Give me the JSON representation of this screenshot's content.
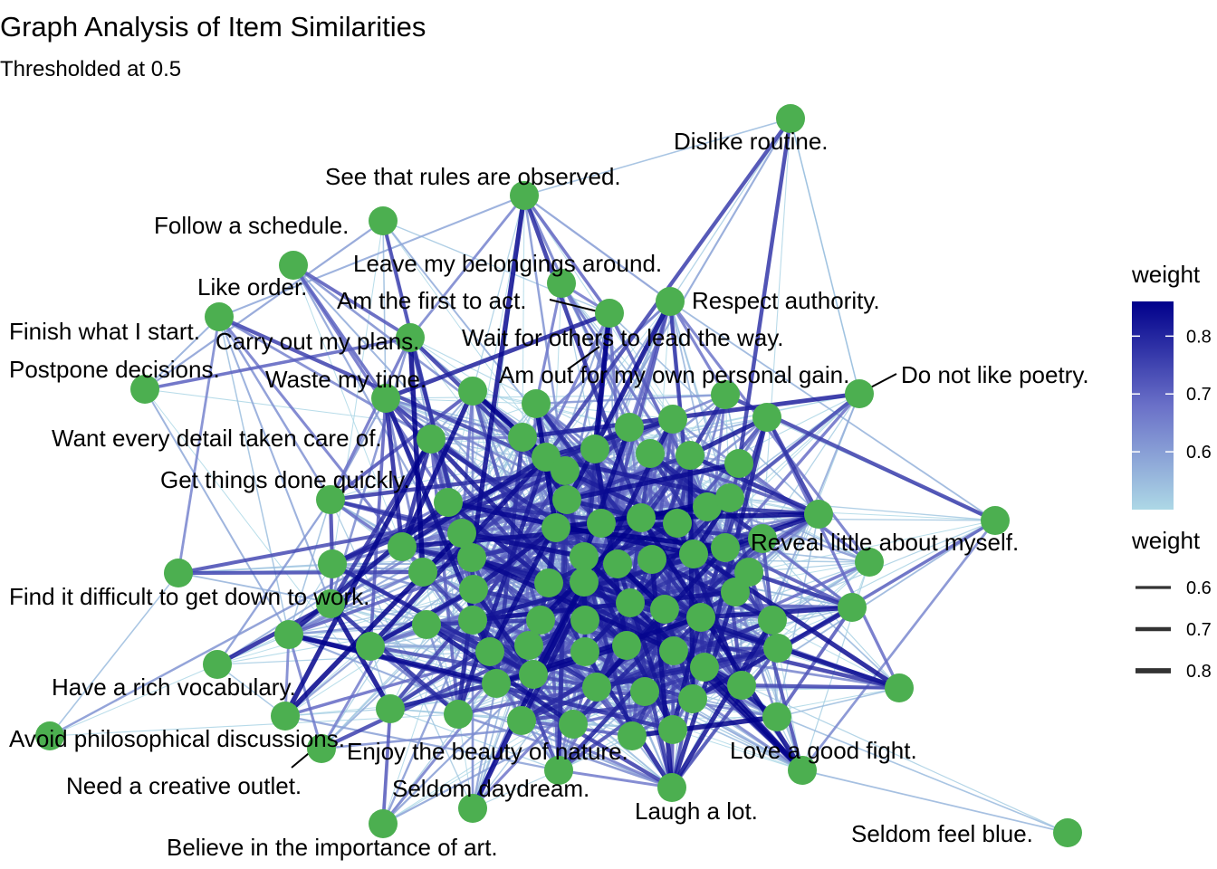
{
  "chart_data": {
    "type": "network",
    "title": "Graph Analysis of Item Similarities",
    "subtitle": "Thresholded at 0.5",
    "node_color": "#4caf50",
    "edge_color_low": "#add8e6",
    "edge_color_high": "#00008b",
    "legend_color": {
      "title": "weight",
      "ticks": [
        "0.8",
        "0.7",
        "0.6"
      ],
      "tick_values": [
        0.8,
        0.7,
        0.6
      ],
      "range": [
        0.5,
        0.86
      ]
    },
    "legend_width": {
      "title": "weight",
      "ticks": [
        "0.6",
        "0.7",
        "0.8"
      ],
      "tick_values": [
        0.6,
        0.7,
        0.8
      ]
    },
    "labels": [
      "Dislike routine.",
      "See that rules are observed.",
      "Follow a schedule.",
      "Leave my belongings around.",
      "Like order.",
      "Am the first to act.",
      "Respect authority.",
      "Finish what I start.",
      "Carry out my plans.",
      "Wait for others to lead the way.",
      "Postpone decisions.",
      "Waste my time.",
      "Am out for my own personal gain.",
      "Do not like poetry.",
      "Want every detail taken care of.",
      "Get things done quickly.",
      "Reveal little about myself.",
      "Find it difficult to get down to work.",
      "Have a rich vocabulary.",
      "Avoid philosophical discussions.",
      "Enjoy the beauty of nature.",
      "Love a good fight.",
      "Need a creative outlet.",
      "Seldom daydream.",
      "Laugh a lot.",
      "Seldom feel blue.",
      "Believe in the importance of art."
    ]
  }
}
